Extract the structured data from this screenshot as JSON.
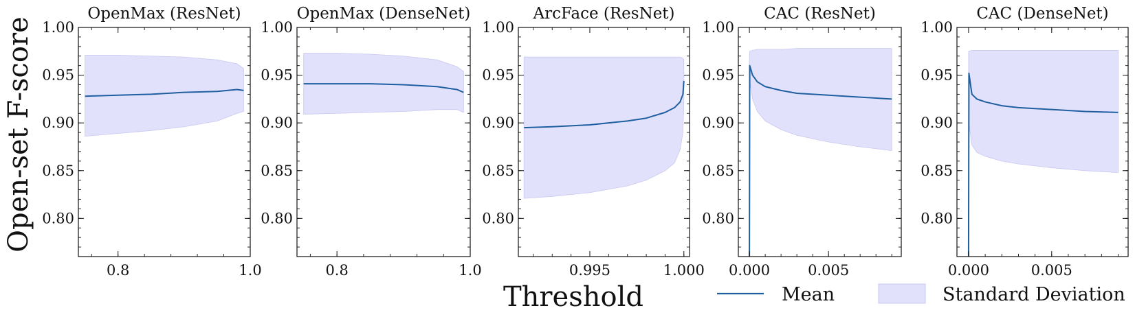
{
  "figure": {
    "ylabel": "Open-set F-score",
    "xlabel": "Threshold",
    "legend": {
      "mean": "Mean",
      "std": "Standard Deviation",
      "position": "bottom-right, below panels"
    },
    "colors": {
      "mean_line": "#1f5fa0",
      "std_fill": "#e1e1fb",
      "std_edge": "#c8c8f0",
      "axes": "#111111"
    }
  },
  "chart_data": [
    {
      "type": "area",
      "title": "OpenMax (ResNet)",
      "xlim": [
        0.74,
        1.0
      ],
      "ylim": [
        0.76,
        1.0
      ],
      "xticks": [
        {
          "v": 0.8,
          "label": "0.8"
        },
        {
          "v": 1.0,
          "label": "1.0"
        }
      ],
      "yticks": [
        {
          "v": 0.8,
          "label": "0.80"
        },
        {
          "v": 0.85,
          "label": "0.85"
        },
        {
          "v": 0.9,
          "label": "0.90"
        },
        {
          "v": 0.95,
          "label": "0.95"
        },
        {
          "v": 1.0,
          "label": "1.00"
        }
      ],
      "series": [
        {
          "x": [
            0.75,
            0.8,
            0.85,
            0.9,
            0.95,
            0.98,
            0.99
          ],
          "mean": [
            0.928,
            0.929,
            0.93,
            0.932,
            0.933,
            0.935,
            0.934
          ],
          "upper": [
            0.971,
            0.971,
            0.97,
            0.969,
            0.966,
            0.962,
            0.957
          ],
          "lower": [
            0.886,
            0.889,
            0.892,
            0.896,
            0.902,
            0.91,
            0.912
          ]
        }
      ]
    },
    {
      "type": "area",
      "title": "OpenMax (DenseNet)",
      "xlim": [
        0.74,
        1.0
      ],
      "ylim": [
        0.76,
        1.0
      ],
      "xticks": [
        {
          "v": 0.8,
          "label": "0.8"
        },
        {
          "v": 1.0,
          "label": "1.0"
        }
      ],
      "yticks": [
        {
          "v": 0.8,
          "label": "0.80"
        },
        {
          "v": 0.85,
          "label": "0.85"
        },
        {
          "v": 0.9,
          "label": "0.90"
        },
        {
          "v": 0.95,
          "label": "0.95"
        },
        {
          "v": 1.0,
          "label": "1.00"
        }
      ],
      "series": [
        {
          "x": [
            0.75,
            0.8,
            0.85,
            0.9,
            0.95,
            0.98,
            0.99
          ],
          "mean": [
            0.941,
            0.941,
            0.941,
            0.94,
            0.938,
            0.935,
            0.932
          ],
          "upper": [
            0.973,
            0.973,
            0.972,
            0.97,
            0.966,
            0.959,
            0.954
          ],
          "lower": [
            0.909,
            0.91,
            0.911,
            0.912,
            0.914,
            0.914,
            0.911
          ]
        }
      ]
    },
    {
      "type": "area",
      "title": "ArcFace (ResNet)",
      "xlim": [
        0.9912,
        1.0003
      ],
      "ylim": [
        0.76,
        1.0
      ],
      "xticks": [
        {
          "v": 0.995,
          "label": "0.995"
        },
        {
          "v": 1.0,
          "label": "1.000"
        }
      ],
      "yticks": [
        {
          "v": 0.8,
          "label": "0.80"
        },
        {
          "v": 0.85,
          "label": "0.85"
        },
        {
          "v": 0.9,
          "label": "0.90"
        },
        {
          "v": 0.95,
          "label": "0.95"
        },
        {
          "v": 1.0,
          "label": "1.00"
        }
      ],
      "series": [
        {
          "x": [
            0.9915,
            0.993,
            0.995,
            0.997,
            0.998,
            0.999,
            0.9995,
            0.9998,
            0.99995,
            1.0
          ],
          "mean": [
            0.895,
            0.896,
            0.898,
            0.902,
            0.905,
            0.911,
            0.916,
            0.922,
            0.93,
            0.944
          ],
          "upper": [
            0.969,
            0.969,
            0.969,
            0.969,
            0.969,
            0.969,
            0.969,
            0.969,
            0.968,
            0.966
          ],
          "lower": [
            0.821,
            0.823,
            0.827,
            0.834,
            0.84,
            0.85,
            0.858,
            0.872,
            0.89,
            0.922
          ]
        }
      ]
    },
    {
      "type": "area",
      "title": "CAC (ResNet)",
      "xlim": [
        -0.0007,
        0.0096
      ],
      "ylim": [
        0.76,
        1.0
      ],
      "xticks": [
        {
          "v": 0.0,
          "label": "0.000"
        },
        {
          "v": 0.005,
          "label": "0.005"
        }
      ],
      "yticks": [
        {
          "v": 0.8,
          "label": "0.80"
        },
        {
          "v": 0.85,
          "label": "0.85"
        },
        {
          "v": 0.9,
          "label": "0.90"
        },
        {
          "v": 0.95,
          "label": "0.95"
        },
        {
          "v": 1.0,
          "label": "1.00"
        }
      ],
      "series": [
        {
          "x": [
            0.0,
            2e-05,
            0.0002,
            0.0005,
            0.001,
            0.002,
            0.003,
            0.005,
            0.007,
            0.009
          ],
          "mean": [
            0.76,
            0.96,
            0.95,
            0.943,
            0.938,
            0.934,
            0.931,
            0.929,
            0.927,
            0.925
          ],
          "upper": [
            0.97,
            0.975,
            0.976,
            0.977,
            0.977,
            0.977,
            0.978,
            0.978,
            0.978,
            0.978
          ],
          "lower": [
            0.95,
            0.945,
            0.925,
            0.912,
            0.902,
            0.893,
            0.887,
            0.88,
            0.875,
            0.871
          ]
        }
      ]
    },
    {
      "type": "area",
      "title": "CAC (DenseNet)",
      "xlim": [
        -0.0007,
        0.0096
      ],
      "ylim": [
        0.76,
        1.0
      ],
      "xticks": [
        {
          "v": 0.0,
          "label": "0.000"
        },
        {
          "v": 0.005,
          "label": "0.005"
        }
      ],
      "yticks": [
        {
          "v": 0.8,
          "label": "0.80"
        },
        {
          "v": 0.85,
          "label": "0.85"
        },
        {
          "v": 0.9,
          "label": "0.90"
        },
        {
          "v": 0.95,
          "label": "0.95"
        },
        {
          "v": 1.0,
          "label": "1.00"
        }
      ],
      "series": [
        {
          "x": [
            0.0,
            2e-05,
            0.0002,
            0.0005,
            0.001,
            0.002,
            0.003,
            0.005,
            0.007,
            0.009
          ],
          "mean": [
            0.76,
            0.952,
            0.93,
            0.925,
            0.922,
            0.918,
            0.916,
            0.914,
            0.912,
            0.911
          ],
          "upper": [
            0.975,
            0.975,
            0.976,
            0.976,
            0.976,
            0.976,
            0.976,
            0.976,
            0.976,
            0.976
          ],
          "lower": [
            0.93,
            0.9,
            0.877,
            0.869,
            0.865,
            0.86,
            0.857,
            0.853,
            0.85,
            0.848
          ]
        }
      ]
    }
  ]
}
